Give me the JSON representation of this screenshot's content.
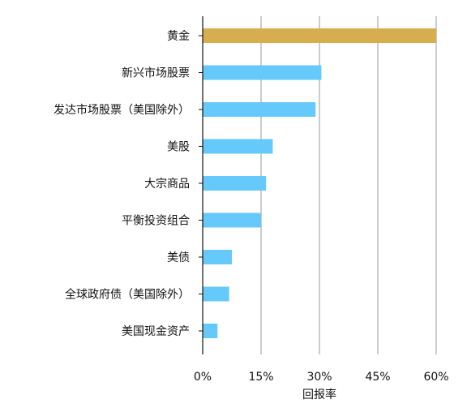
{
  "chart_data": {
    "type": "bar",
    "orientation": "horizontal",
    "title": "",
    "xlabel": "回报率",
    "ylabel": "",
    "categories": [
      "黄金",
      "新兴市场股票",
      "发达市场股票（美国除外）",
      "美股",
      "大宗商品",
      "平衡投资组合",
      "美债",
      "全球政府债（美国除外）",
      "美国现金资产"
    ],
    "values": [
      60,
      30.5,
      29,
      18,
      16.3,
      15,
      7.5,
      6.8,
      3.8
    ],
    "xlim": [
      0,
      60
    ],
    "xticks": [
      0,
      15,
      30,
      45,
      60
    ],
    "xtick_labels": [
      "0%",
      "15%",
      "30%",
      "45%",
      "60%"
    ],
    "grid": "vertical",
    "legend": "none",
    "colors": {
      "highlight": "#d6ae4f",
      "default": "#66c9fb",
      "gridline": "#9a9a9a",
      "axis": "#111111",
      "text": "#111111"
    }
  }
}
